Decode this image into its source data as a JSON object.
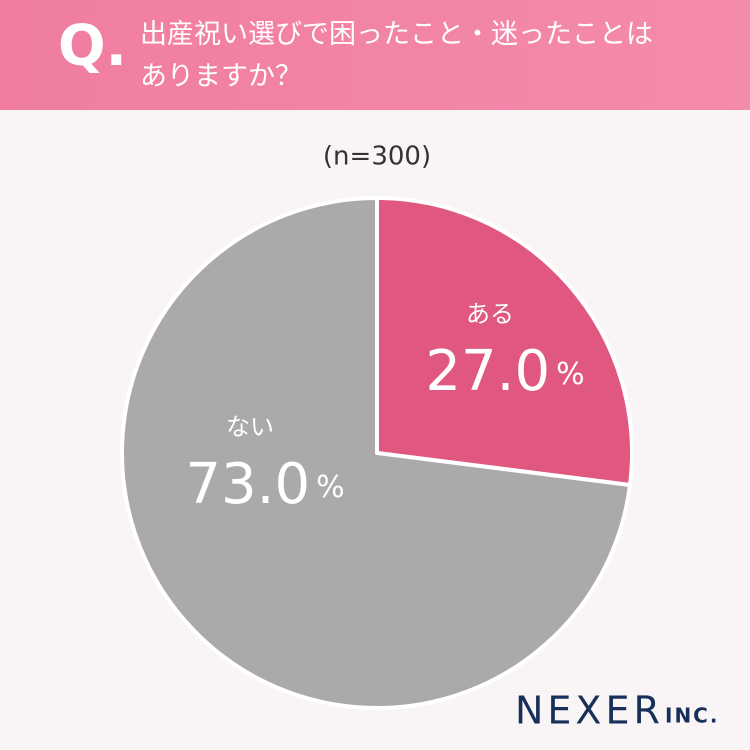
{
  "header": {
    "q_mark": "Q."
  },
  "chart_data": {
    "type": "pie",
    "title": "出産祝い選びで困ったこと・迷ったことはありますか？",
    "subtitle": "(n=300)",
    "categories": [
      "ある",
      "ない"
    ],
    "values": [
      27.0,
      73.0
    ],
    "value_labels": [
      "27.0%",
      "73.0%"
    ],
    "colors": [
      "#e05780",
      "#aba9aa"
    ]
  },
  "footer": {
    "logo": "NEXER",
    "logo_suffix": "INC."
  }
}
